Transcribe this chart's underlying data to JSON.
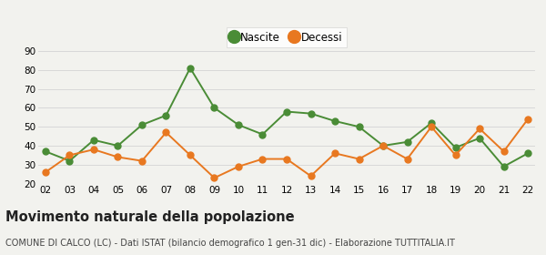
{
  "years": [
    "02",
    "03",
    "04",
    "05",
    "06",
    "07",
    "08",
    "09",
    "10",
    "11",
    "12",
    "13",
    "14",
    "15",
    "16",
    "17",
    "18",
    "19",
    "20",
    "21",
    "22"
  ],
  "nascite": [
    37,
    32,
    43,
    40,
    51,
    56,
    81,
    60,
    51,
    46,
    58,
    57,
    53,
    50,
    40,
    42,
    52,
    39,
    44,
    29,
    36
  ],
  "decessi": [
    26,
    35,
    38,
    34,
    32,
    47,
    35,
    23,
    29,
    33,
    33,
    24,
    36,
    33,
    40,
    33,
    50,
    35,
    49,
    37,
    54
  ],
  "nascite_color": "#4a8c36",
  "decessi_color": "#e87820",
  "bg_color": "#f2f2ee",
  "grid_color": "#d8d8d8",
  "ylim": [
    20,
    90
  ],
  "yticks": [
    20,
    30,
    40,
    50,
    60,
    70,
    80,
    90
  ],
  "title": "Movimento naturale della popolazione",
  "subtitle": "COMUNE DI CALCO (LC) - Dati ISTAT (bilancio demografico 1 gen-31 dic) - Elaborazione TUTTITALIA.IT",
  "legend_nascite": "Nascite",
  "legend_decessi": "Decessi",
  "title_fontsize": 10.5,
  "subtitle_fontsize": 7.0,
  "marker_size": 5,
  "linewidth": 1.4
}
